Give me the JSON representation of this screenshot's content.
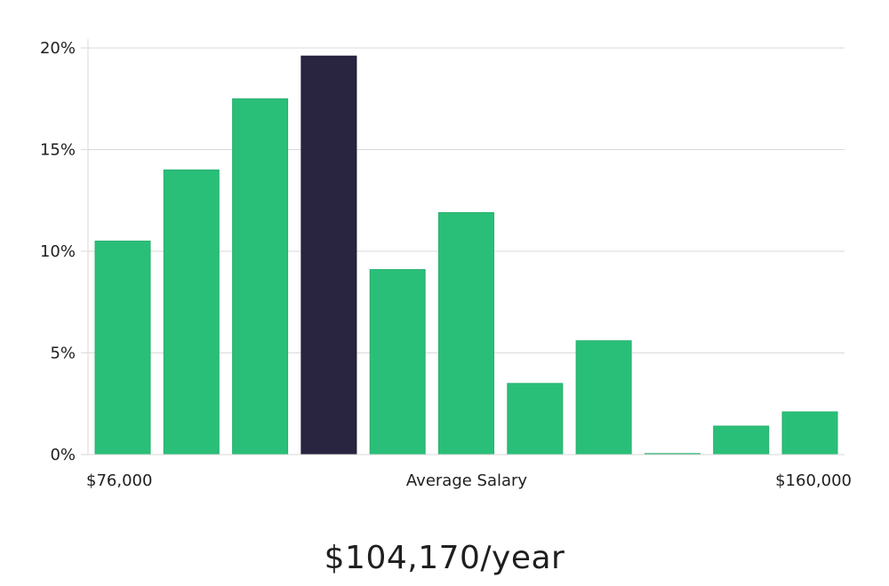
{
  "colors": {
    "bar": "#2abf78",
    "highlight": "#29243f",
    "grid": "#d9d9d9",
    "text": "#1f1f1f"
  },
  "chart_data": {
    "type": "bar",
    "x_min_label": "$76,000",
    "x_max_label": "$160,000",
    "xlabel": "Average Salary",
    "ylabel": "",
    "ylim": [
      0,
      20
    ],
    "yticks": [
      {
        "value": 0,
        "label": "0%"
      },
      {
        "value": 5,
        "label": "5%"
      },
      {
        "value": 10,
        "label": "10%"
      },
      {
        "value": 15,
        "label": "15%"
      },
      {
        "value": 20,
        "label": "20%"
      }
    ],
    "values": [
      10.5,
      14.0,
      17.5,
      19.6,
      9.1,
      11.9,
      3.5,
      5.6,
      0.05,
      1.4,
      2.1
    ],
    "highlight_index": 3,
    "grid": true,
    "legend": "none"
  },
  "summary": {
    "salary": "$104,170/year"
  }
}
